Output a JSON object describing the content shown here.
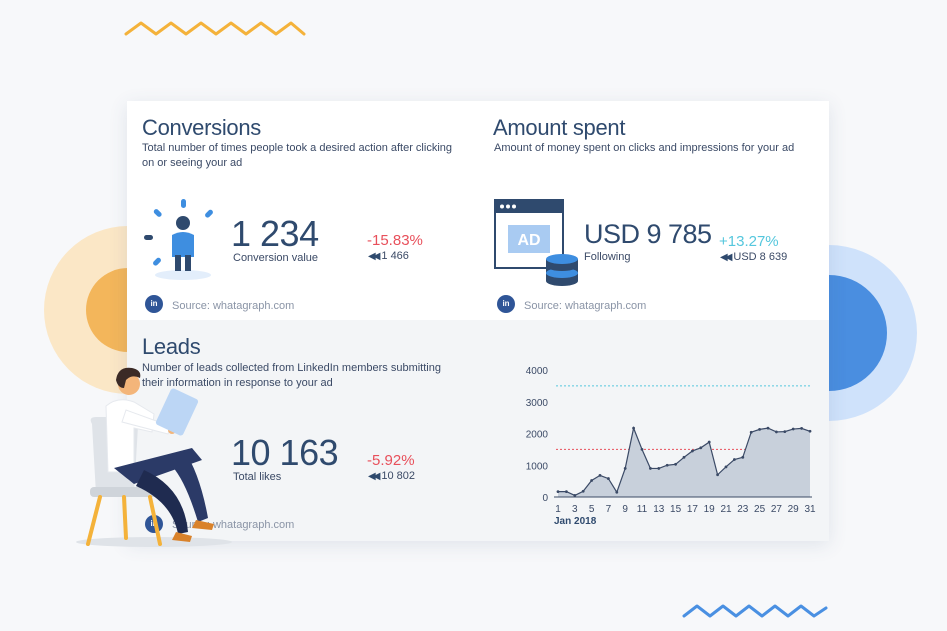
{
  "conversions": {
    "title": "Conversions",
    "description_line1": "Total number of times people took a desired action after clicking",
    "description_line2": "on or seeing your ad",
    "value": "1 234",
    "value_label": "Conversion value",
    "change": "-15.83%",
    "previous": "1 466",
    "source": "Source: whatagraph.com",
    "icon": "person-attention-icon"
  },
  "amount_spent": {
    "title": "Amount spent",
    "description": "Amount of money spent on clicks and impressions for your ad",
    "value": "USD 9 785",
    "value_label": "Following",
    "change": "+13.27%",
    "previous": "USD 8 639",
    "source": "Source: whatagraph.com",
    "icon": "ad-browser-icon",
    "ad_text": "AD"
  },
  "leads": {
    "title": "Leads",
    "description_line1": "Number of leads collected from LinkedIn members submitting",
    "description_line2": "their information in response to your ad",
    "value": "10 163",
    "value_label": "Total likes",
    "change": "-5.92%",
    "previous": "10 802",
    "source": "Source: whatagraph.com"
  },
  "linkedin_badge": "in",
  "colors": {
    "negative": "#e8505b",
    "positive": "#55c7dd",
    "title": "#2f4a6e",
    "area_fill": "#c8d0db",
    "area_stroke": "#3b4a66",
    "ref_red": "#e8505b",
    "ref_blue": "#55c7dd"
  },
  "chart_data": {
    "type": "area",
    "x": [
      1,
      2,
      3,
      4,
      5,
      6,
      7,
      8,
      9,
      10,
      11,
      12,
      13,
      14,
      15,
      16,
      17,
      18,
      19,
      20,
      21,
      22,
      23,
      24,
      25,
      26,
      27,
      28,
      29,
      30,
      31
    ],
    "values": [
      170,
      170,
      50,
      180,
      520,
      680,
      580,
      150,
      900,
      2170,
      1500,
      900,
      900,
      1000,
      1030,
      1250,
      1450,
      1550,
      1730,
      700,
      950,
      1180,
      1250,
      2040,
      2130,
      2170,
      2050,
      2060,
      2140,
      2160,
      2070
    ],
    "x_tick_labels": [
      "1",
      "3",
      "5",
      "7",
      "9",
      "11",
      "13",
      "15",
      "17",
      "19",
      "21",
      "23",
      "25",
      "27",
      "29",
      "31"
    ],
    "x_period_label": "Jan 2018",
    "y_ticks": [
      "0",
      "1000",
      "2000",
      "3000",
      "4000"
    ],
    "ylim": [
      0,
      4000
    ],
    "ref_lines": [
      {
        "value": 3500,
        "color": "blue"
      },
      {
        "value": 1500,
        "color": "red"
      }
    ]
  }
}
